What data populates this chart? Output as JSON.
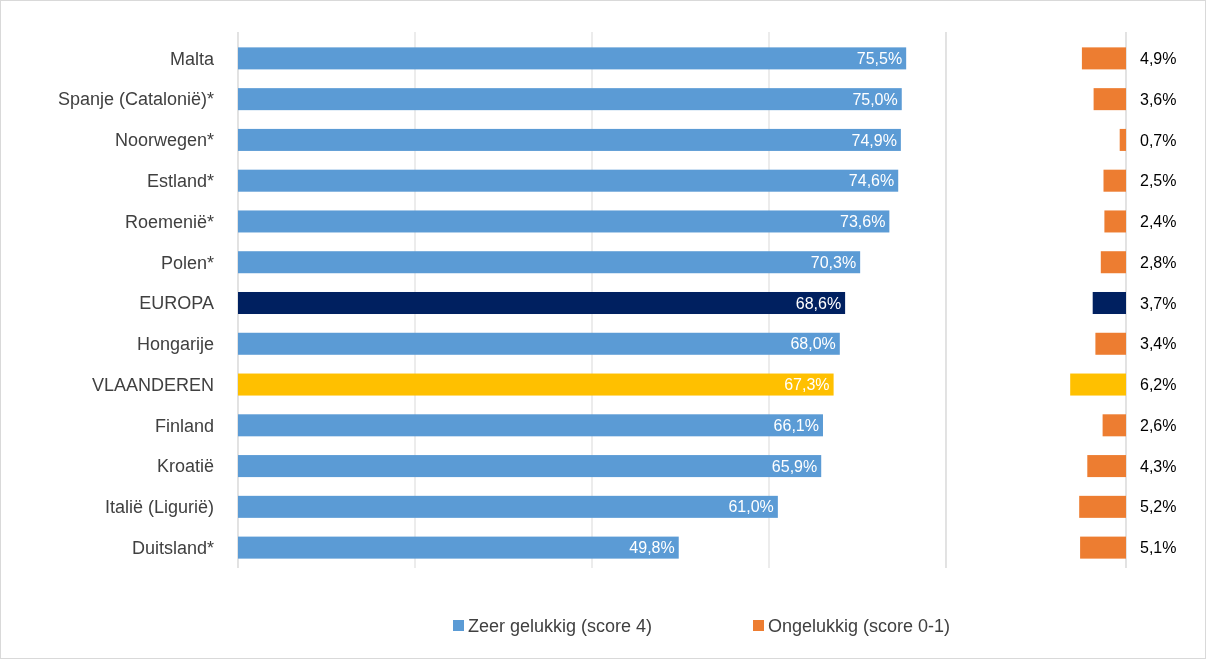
{
  "chart_data": [
    {
      "type": "bar",
      "orientation": "horizontal",
      "categories": [
        "Malta",
        "Spanje (Catalonië)*",
        "Noorwegen*",
        "Estland*",
        "Roemenië*",
        "Polen*",
        "EUROPA",
        "Hongarije",
        "VLAANDEREN",
        "Finland",
        "Kroatië",
        "Italië (Ligurië)",
        "Duitsland*"
      ],
      "series": [
        {
          "name": "Zeer gelukkig (score 4)",
          "color": "#5b9bd5",
          "colors": [
            "#5b9bd5",
            "#5b9bd5",
            "#5b9bd5",
            "#5b9bd5",
            "#5b9bd5",
            "#5b9bd5",
            "#002060",
            "#5b9bd5",
            "#ffc000",
            "#5b9bd5",
            "#5b9bd5",
            "#5b9bd5",
            "#5b9bd5"
          ],
          "values": [
            75.5,
            75.0,
            74.9,
            74.6,
            73.6,
            70.3,
            68.6,
            68.0,
            67.3,
            66.1,
            65.9,
            61.0,
            49.8
          ],
          "value_labels": [
            "75,5%",
            "75,0%",
            "74,9%",
            "74,6%",
            "73,6%",
            "70,3%",
            "68,6%",
            "68,0%",
            "67,3%",
            "66,1%",
            "65,9%",
            "61,0%",
            "49,8%"
          ]
        }
      ],
      "xlim": [
        0,
        80
      ],
      "xticks": [
        {
          "value": 0,
          "label": null
        },
        {
          "value": 20,
          "label": null
        },
        {
          "value": 40,
          "label": null
        },
        {
          "value": 60,
          "label": null
        },
        {
          "value": 80,
          "label": null
        }
      ],
      "grid": "x",
      "legend": "bottom",
      "tick_labels": "y"
    },
    {
      "type": "bar",
      "orientation": "horizontal",
      "categories": [
        null,
        null,
        null,
        null,
        null,
        null,
        null,
        null,
        null,
        null,
        null,
        null,
        null
      ],
      "series": [
        {
          "name": "Ongelukkig (score 0-1)",
          "color": "#ed7d31",
          "colors": [
            "#ed7d31",
            "#ed7d31",
            "#ed7d31",
            "#ed7d31",
            "#ed7d31",
            "#ed7d31",
            "#002060",
            "#ed7d31",
            "#ffc000",
            "#ed7d31",
            "#ed7d31",
            "#ed7d31",
            "#ed7d31"
          ],
          "values": [
            4.9,
            3.6,
            0.7,
            2.5,
            2.4,
            2.8,
            3.7,
            3.4,
            6.2,
            2.6,
            4.3,
            5.2,
            5.1
          ],
          "value_labels": [
            "4,9%",
            "3,6%",
            "0,7%",
            "2,5%",
            "2,4%",
            "2,8%",
            "3,7%",
            "3,4%",
            "6,2%",
            "2,6%",
            "4,3%",
            "5,2%",
            "5,1%"
          ]
        }
      ],
      "xlim": [
        20,
        0
      ],
      "legend": "bottom",
      "tick_labels": false
    }
  ]
}
